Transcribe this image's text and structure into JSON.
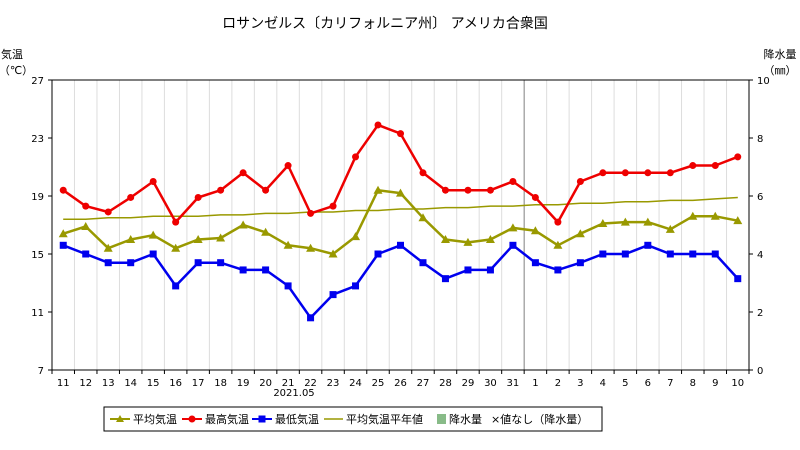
{
  "chart_data": {
    "type": "line",
    "title": "ロサンゼルス〔カリフォルニア州〕 アメリカ合衆国",
    "ylabel_left": "気温",
    "ylabel_left_unit": "（℃）",
    "ylabel_right": "降水量",
    "ylabel_right_unit": "（㎜）",
    "ylim_left": [
      7,
      27
    ],
    "yticks_left": [
      7,
      11,
      15,
      19,
      23,
      27
    ],
    "ylim_right": [
      0,
      10
    ],
    "yticks_right": [
      0,
      2,
      4,
      6,
      8,
      10
    ],
    "month_label": "2021.05",
    "categories": [
      "11",
      "12",
      "13",
      "14",
      "15",
      "16",
      "17",
      "18",
      "19",
      "20",
      "21",
      "22",
      "23",
      "24",
      "25",
      "26",
      "27",
      "28",
      "29",
      "30",
      "31",
      "1",
      "2",
      "3",
      "4",
      "5",
      "6",
      "7",
      "8",
      "9",
      "10"
    ],
    "grid": "vertical lines at each day",
    "legend_position": "bottom",
    "series": [
      {
        "name": "平均気温",
        "color": "#999900",
        "marker": "triangle",
        "values": [
          16.4,
          16.9,
          15.4,
          16.0,
          16.3,
          15.4,
          16.0,
          16.1,
          17.0,
          16.5,
          15.6,
          15.4,
          15.0,
          16.2,
          19.4,
          19.2,
          17.5,
          16.0,
          15.8,
          16.0,
          16.8,
          16.6,
          15.6,
          16.4,
          17.1,
          17.2,
          17.2,
          16.7,
          17.6,
          17.6,
          17.3
        ]
      },
      {
        "name": "最高気温",
        "color": "#ee0000",
        "marker": "circle",
        "values": [
          19.4,
          18.3,
          17.9,
          18.9,
          20.0,
          17.2,
          18.9,
          19.4,
          20.6,
          19.4,
          21.1,
          17.8,
          18.3,
          21.7,
          23.9,
          23.3,
          20.6,
          19.4,
          19.4,
          19.4,
          20.0,
          18.9,
          17.2,
          20.0,
          20.6,
          20.6,
          20.6,
          20.6,
          21.1,
          21.1,
          21.7
        ]
      },
      {
        "name": "最低気温",
        "color": "#0000ee",
        "marker": "square",
        "values": [
          15.6,
          15.0,
          14.4,
          14.4,
          15.0,
          12.8,
          14.4,
          14.4,
          13.9,
          13.9,
          12.8,
          10.6,
          12.2,
          12.8,
          15.0,
          15.6,
          14.4,
          13.3,
          13.9,
          13.9,
          15.6,
          14.4,
          13.9,
          14.4,
          15.0,
          15.0,
          15.6,
          15.0,
          15.0,
          15.0,
          13.3
        ]
      },
      {
        "name": "平均気温平年値",
        "color": "#999900",
        "marker": "none",
        "values": [
          17.4,
          17.4,
          17.5,
          17.5,
          17.6,
          17.6,
          17.6,
          17.7,
          17.7,
          17.8,
          17.8,
          17.9,
          17.9,
          18.0,
          18.0,
          18.1,
          18.1,
          18.2,
          18.2,
          18.3,
          18.3,
          18.4,
          18.4,
          18.5,
          18.5,
          18.6,
          18.6,
          18.7,
          18.7,
          18.8,
          18.9
        ]
      }
    ],
    "legend": {
      "items": [
        "平均気温",
        "最高気温",
        "最低気温",
        "平均気温平年値",
        "降水量"
      ],
      "note": "×値なし（降水量）",
      "precip_color": "#88bb88"
    },
    "month_boundary_after": "31"
  }
}
